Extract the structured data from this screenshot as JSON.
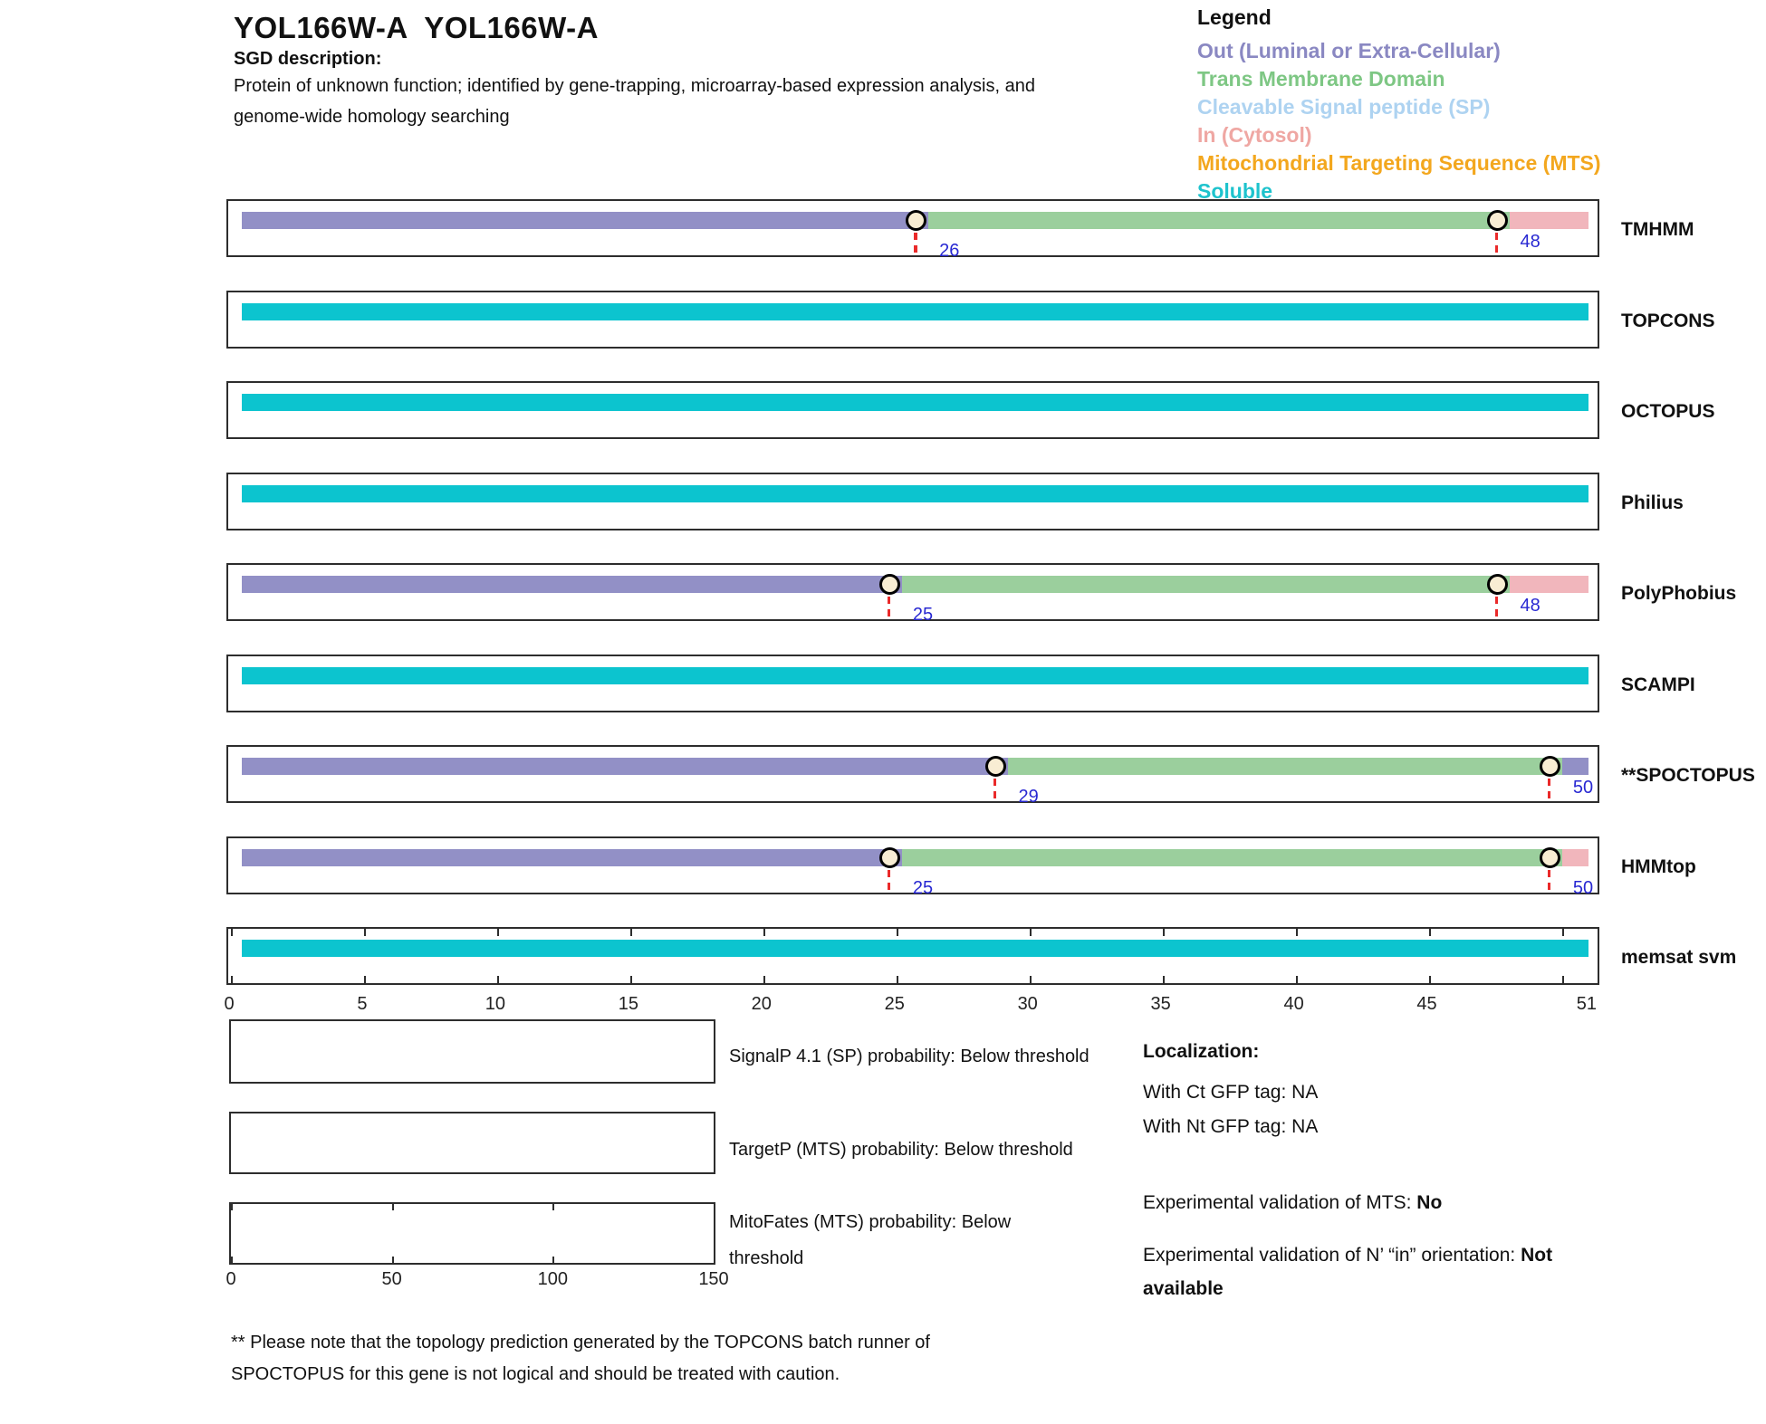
{
  "header": {
    "title": "YOL166W-A  YOL166W-A",
    "sgd_label": "SGD description:",
    "description_line1": "Protein of unknown function; identified by gene-trapping, microarray-based expression analysis, and",
    "description_line2": "genome-wide homology searching"
  },
  "legend": {
    "title": "Legend",
    "items": [
      {
        "label": "Out (Luminal or Extra-Cellular)",
        "color": "#8a88c2"
      },
      {
        "label": "Trans Membrane Domain",
        "color": "#7ec784"
      },
      {
        "label": "Cleavable Signal peptide (SP)",
        "color": "#aed3f1"
      },
      {
        "label": "In (Cytosol)",
        "color": "#efa7a3"
      },
      {
        "label": "Mitochondrial Targeting Sequence (MTS)",
        "color": "#f3a71e"
      },
      {
        "label": "Soluble",
        "color": "#1ec3cd"
      }
    ]
  },
  "colors": {
    "out": "#9290c6",
    "tm": "#9bcf9d",
    "in": "#f1b6bc",
    "soluble": "#0cc4cf",
    "marker_line": "#ea2a2a",
    "marker_fill": "#f8edd3",
    "position_label": "#2828d2"
  },
  "chart_data": {
    "type": "bar",
    "title": "Topology predictions for YOL166W-A",
    "xlabel": "",
    "ylabel": "",
    "xlim": [
      0,
      51
    ],
    "sequence_length": 51,
    "xticks": [
      0,
      5,
      10,
      15,
      20,
      25,
      30,
      35,
      40,
      45,
      51
    ],
    "legend_position": "top-right",
    "tracks": [
      {
        "label": "TMHMM",
        "segments": [
          {
            "start": 0,
            "end": 26,
            "region": "out"
          },
          {
            "start": 26,
            "end": 48,
            "region": "tm"
          },
          {
            "start": 48,
            "end": 51,
            "region": "in"
          }
        ],
        "markers": [
          {
            "pos": 26,
            "label": "26",
            "align": "low"
          },
          {
            "pos": 48,
            "label": "48",
            "align": "mid"
          }
        ]
      },
      {
        "label": "TOPCONS",
        "segments": [
          {
            "start": 0,
            "end": 51,
            "region": "soluble"
          }
        ],
        "markers": []
      },
      {
        "label": "OCTOPUS",
        "segments": [
          {
            "start": 0,
            "end": 51,
            "region": "soluble"
          }
        ],
        "markers": []
      },
      {
        "label": "Philius",
        "segments": [
          {
            "start": 0,
            "end": 51,
            "region": "soluble"
          }
        ],
        "markers": []
      },
      {
        "label": "PolyPhobius",
        "segments": [
          {
            "start": 0,
            "end": 25,
            "region": "out"
          },
          {
            "start": 25,
            "end": 48,
            "region": "tm"
          },
          {
            "start": 48,
            "end": 51,
            "region": "in"
          }
        ],
        "markers": [
          {
            "pos": 25,
            "label": "25",
            "align": "low"
          },
          {
            "pos": 48,
            "label": "48",
            "align": "mid"
          }
        ]
      },
      {
        "label": "SCAMPI",
        "segments": [
          {
            "start": 0,
            "end": 51,
            "region": "soluble"
          }
        ],
        "markers": []
      },
      {
        "label": "**SPOCTOPUS",
        "segments": [
          {
            "start": 0,
            "end": 29,
            "region": "out"
          },
          {
            "start": 29,
            "end": 50,
            "region": "tm"
          },
          {
            "start": 50,
            "end": 51,
            "region": "out"
          }
        ],
        "markers": [
          {
            "pos": 29,
            "label": "29",
            "align": "low"
          },
          {
            "pos": 50,
            "label": "50",
            "align": "mid"
          }
        ]
      },
      {
        "label": "HMMtop",
        "segments": [
          {
            "start": 0,
            "end": 25,
            "region": "out"
          },
          {
            "start": 25,
            "end": 50,
            "region": "tm"
          },
          {
            "start": 50,
            "end": 51,
            "region": "in"
          }
        ],
        "markers": [
          {
            "pos": 25,
            "label": "25",
            "align": "low"
          },
          {
            "pos": 50,
            "label": "50",
            "align": "low"
          }
        ]
      },
      {
        "label": "memsat svm",
        "segments": [
          {
            "start": 0,
            "end": 51,
            "region": "soluble"
          }
        ],
        "markers": [],
        "ruler_ticks": true
      }
    ]
  },
  "bottom_plots": {
    "plots": [
      {
        "name": "signalp",
        "caption": "SignalP 4.1 (SP) probability: Below threshold"
      },
      {
        "name": "targetp",
        "caption": "TargetP (MTS) probability: Below threshold"
      },
      {
        "name": "mitofates",
        "caption_line1": "MitoFates (MTS) probability: Below",
        "caption_line2": "threshold",
        "axis_ticks": [
          0,
          50,
          100,
          150
        ]
      }
    ]
  },
  "localization": {
    "title": "Localization:",
    "ct_line": "With Ct GFP tag: NA",
    "nt_line": "With Nt GFP tag: NA",
    "mts_prefix": "Experimental validation of MTS: ",
    "mts_value": "No",
    "orientation_prefix": "Experimental validation of N’ “in” orientation: ",
    "orientation_value_line1": "Not",
    "orientation_value_line2": "available"
  },
  "footnote": {
    "line1": "** Please note that the topology prediction generated by the TOPCONS batch runner of",
    "line2": "SPOCTOPUS for this gene is not logical and should be treated with caution."
  }
}
